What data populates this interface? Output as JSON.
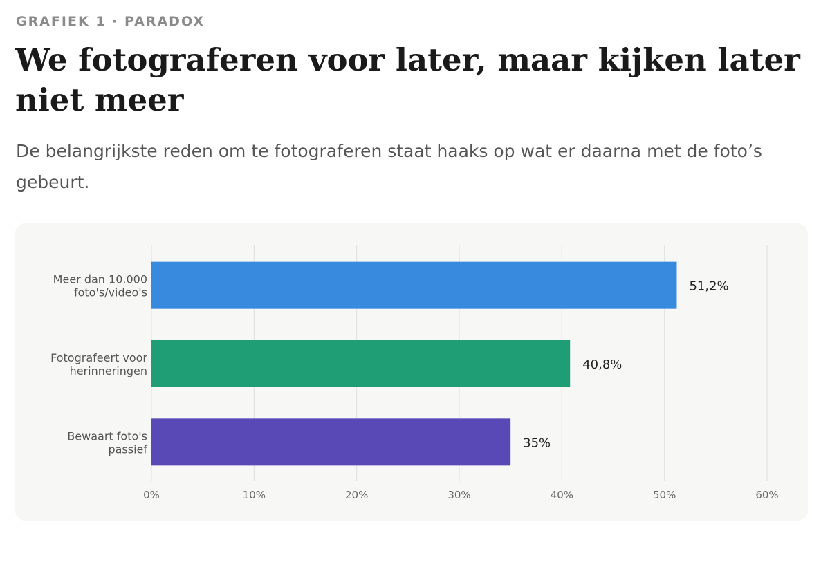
{
  "header": {
    "eyebrow": "GRAFIEK 1 · PARADOX",
    "title": "We fotograferen voor later, maar kijken later niet meer",
    "subtitle": "De belangrijkste reden om te fotograferen staat haaks op wat er daarna met de foto’s gebeurt."
  },
  "chart_data": {
    "type": "bar",
    "orientation": "horizontal",
    "categories": [
      [
        "Meer dan 10.000",
        "foto's/video's"
      ],
      [
        "Fotografeert voor",
        "herinneringen"
      ],
      [
        "Bewaart foto's",
        "passief"
      ]
    ],
    "values": [
      51.2,
      40.8,
      35
    ],
    "value_labels": [
      "51,2%",
      "40,8%",
      "35%"
    ],
    "colors": [
      "#388ade",
      "#1f9e76",
      "#5849b6"
    ],
    "xlim": [
      0,
      60
    ],
    "x_ticks": [
      0,
      10,
      20,
      30,
      40,
      50,
      60
    ],
    "x_tick_labels": [
      "0%",
      "10%",
      "20%",
      "30%",
      "40%",
      "50%",
      "60%"
    ],
    "grid": "vertical",
    "legend": "none"
  }
}
